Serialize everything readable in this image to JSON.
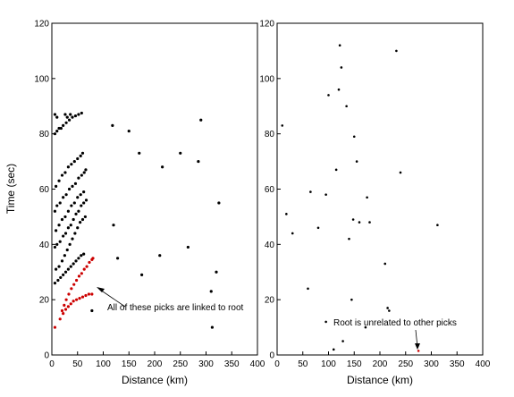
{
  "chart_data": [
    {
      "type": "scatter",
      "xlabel": "Distance (km)",
      "ylabel": "Time (sec)",
      "xlim": [
        0,
        400
      ],
      "ylim": [
        0,
        120
      ],
      "xticks": [
        "0",
        "50",
        "100",
        "150",
        "200",
        "250",
        "300",
        "350",
        "400"
      ],
      "yticks": [
        "0",
        "20",
        "40",
        "60",
        "80",
        "100",
        "120"
      ],
      "grid": false,
      "annotation": {
        "text": "All of these picks are linked to root",
        "arrow_to": [
          85,
          24
        ]
      },
      "series": [
        {
          "color": "#cc0000",
          "points": [
            [
              6,
              10
            ],
            [
              16,
              13
            ],
            [
              22,
              15
            ],
            [
              27,
              16.5
            ],
            [
              32,
              17.5
            ],
            [
              37,
              18.5
            ],
            [
              42,
              19.5
            ],
            [
              48,
              20
            ],
            [
              54,
              20.5
            ],
            [
              60,
              21
            ],
            [
              66,
              21.5
            ],
            [
              72,
              22
            ],
            [
              78,
              22
            ],
            [
              20,
              16
            ],
            [
              24,
              18
            ],
            [
              28,
              20
            ],
            [
              33,
              22
            ],
            [
              38,
              24
            ],
            [
              43,
              25.5
            ],
            [
              48,
              27
            ],
            [
              53,
              28.5
            ],
            [
              58,
              29.5
            ],
            [
              63,
              31
            ],
            [
              68,
              32
            ],
            [
              73,
              33.5
            ],
            [
              78,
              34.5
            ],
            [
              80,
              35
            ]
          ]
        },
        {
          "color": "#000000",
          "points": [
            [
              6,
              26
            ],
            [
              12,
              27
            ],
            [
              17,
              28
            ],
            [
              22,
              29
            ],
            [
              27,
              30
            ],
            [
              32,
              31
            ],
            [
              37,
              32
            ],
            [
              42,
              33
            ],
            [
              47,
              34
            ],
            [
              52,
              35
            ],
            [
              57,
              36
            ],
            [
              62,
              36.5
            ],
            [
              8,
              31
            ],
            [
              14,
              32
            ],
            [
              20,
              34
            ],
            [
              25,
              36
            ],
            [
              30,
              38
            ],
            [
              35,
              40
            ],
            [
              40,
              42
            ],
            [
              45,
              44
            ],
            [
              50,
              46
            ],
            [
              55,
              48
            ],
            [
              60,
              49
            ],
            [
              65,
              50
            ],
            [
              6,
              39
            ],
            [
              10,
              40
            ],
            [
              16,
              41
            ],
            [
              22,
              43
            ],
            [
              27,
              44
            ],
            [
              32,
              46
            ],
            [
              37,
              47
            ],
            [
              42,
              49
            ],
            [
              47,
              51
            ],
            [
              52,
              52
            ],
            [
              57,
              54
            ],
            [
              62,
              55
            ],
            [
              67,
              56
            ],
            [
              8,
              45
            ],
            [
              14,
              47
            ],
            [
              20,
              49
            ],
            [
              26,
              50
            ],
            [
              32,
              52
            ],
            [
              38,
              54
            ],
            [
              44,
              55
            ],
            [
              50,
              57
            ],
            [
              56,
              58
            ],
            [
              62,
              59
            ],
            [
              6,
              52
            ],
            [
              10,
              54
            ],
            [
              16,
              55
            ],
            [
              22,
              57
            ],
            [
              28,
              58
            ],
            [
              34,
              60
            ],
            [
              40,
              61
            ],
            [
              46,
              62
            ],
            [
              52,
              64
            ],
            [
              58,
              65
            ],
            [
              63,
              66
            ],
            [
              66,
              67
            ],
            [
              8,
              61
            ],
            [
              14,
              63
            ],
            [
              20,
              65
            ],
            [
              26,
              66
            ],
            [
              32,
              68
            ],
            [
              38,
              69
            ],
            [
              44,
              70
            ],
            [
              50,
              71
            ],
            [
              56,
              72
            ],
            [
              60,
              73
            ],
            [
              6,
              80
            ],
            [
              10,
              81
            ],
            [
              14,
              82
            ],
            [
              18,
              82
            ],
            [
              22,
              83
            ],
            [
              28,
              84
            ],
            [
              34,
              85
            ],
            [
              40,
              86
            ],
            [
              46,
              86.5
            ],
            [
              52,
              87
            ],
            [
              58,
              87.5
            ],
            [
              6,
              87
            ],
            [
              10,
              86
            ],
            [
              26,
              87
            ],
            [
              30,
              86
            ],
            [
              36,
              87
            ],
            [
              78,
              16
            ],
            [
              118,
              83
            ],
            [
              120,
              47
            ],
            [
              128,
              35
            ],
            [
              150,
              81
            ],
            [
              170,
              73
            ],
            [
              175,
              29
            ],
            [
              210,
              36
            ],
            [
              215,
              68
            ],
            [
              250,
              73
            ],
            [
              265,
              39
            ],
            [
              285,
              70
            ],
            [
              290,
              85
            ],
            [
              310,
              23
            ],
            [
              312,
              10
            ],
            [
              320,
              30
            ],
            [
              325,
              55
            ]
          ]
        }
      ]
    },
    {
      "type": "scatter",
      "xlabel": "Distance (km)",
      "ylabel": "",
      "xlim": [
        0,
        400
      ],
      "ylim": [
        0,
        120
      ],
      "xticks": [
        "0",
        "50",
        "100",
        "150",
        "200",
        "250",
        "300",
        "350",
        "400"
      ],
      "yticks": [
        "0",
        "20",
        "40",
        "60",
        "80",
        "100",
        "120"
      ],
      "grid": false,
      "annotation": {
        "text": "Root is unrelated to other picks",
        "arrow_to": [
          275,
          2
        ]
      },
      "series": [
        {
          "color": "#cc0000",
          "points": [
            [
              275,
              1.5
            ]
          ]
        },
        {
          "color": "#000000",
          "points": [
            [
              10,
              83
            ],
            [
              18,
              51
            ],
            [
              30,
              44
            ],
            [
              60,
              24
            ],
            [
              65,
              59
            ],
            [
              80,
              46
            ],
            [
              95,
              12
            ],
            [
              95,
              58
            ],
            [
              100,
              94
            ],
            [
              110,
              2
            ],
            [
              115,
              67
            ],
            [
              120,
              96
            ],
            [
              122,
              112
            ],
            [
              125,
              104
            ],
            [
              128,
              5
            ],
            [
              135,
              90
            ],
            [
              140,
              42
            ],
            [
              145,
              20
            ],
            [
              148,
              49
            ],
            [
              150,
              79
            ],
            [
              155,
              70
            ],
            [
              160,
              48
            ],
            [
              172,
              10
            ],
            [
              175,
              57
            ],
            [
              180,
              48
            ],
            [
              210,
              33
            ],
            [
              215,
              17
            ],
            [
              218,
              16
            ],
            [
              232,
              110
            ],
            [
              240,
              66
            ],
            [
              312,
              47
            ]
          ]
        }
      ]
    }
  ]
}
